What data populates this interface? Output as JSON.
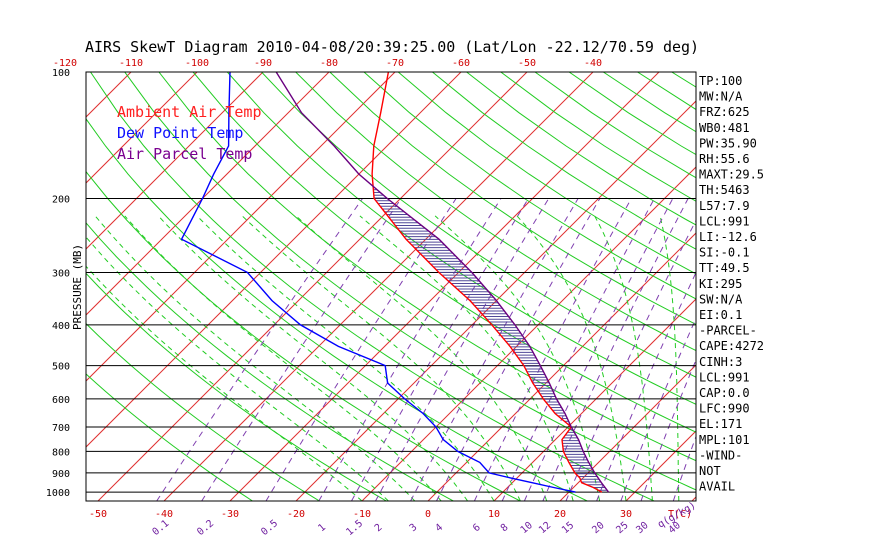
{
  "chart_data": {
    "type": "skewt",
    "title": "AIRS SkewT Diagram 2010-04-08/20:39:25.00 (Lat/Lon -22.12/70.59 deg)",
    "ylabel": "PRESSURE (MB)",
    "pressure_ticks": [
      100,
      200,
      300,
      400,
      500,
      600,
      700,
      800,
      900,
      1000
    ],
    "top_temp_ticks": [
      -120,
      -110,
      -100,
      -90,
      -80,
      -70,
      -60,
      -50,
      -40
    ],
    "bottom_temp_ticks": [
      -50,
      -40,
      -30,
      -20,
      -10,
      0,
      10,
      20,
      30
    ],
    "bottom_temp_unit": "T(C)",
    "mixing_ratio_ticks": [
      "0.1",
      "0.2",
      "0.5",
      "1",
      "1.5",
      "2",
      "3",
      "4",
      "6",
      "8",
      "10",
      "12",
      "15",
      "20",
      "25",
      "30",
      "40"
    ],
    "mixing_ratio_unit": "q(g/kg)",
    "legend": [
      {
        "label": "Ambient Air Temp",
        "color": "#ff2020"
      },
      {
        "label": "Dew Point Temp",
        "color": "#1010ff"
      },
      {
        "label": "Air Parcel Temp",
        "color": "#7a0090"
      }
    ],
    "series": [
      {
        "name": "Ambient Air Temp",
        "color": "#ff0000",
        "points": [
          [
            1000,
            25
          ],
          [
            975,
            23
          ],
          [
            950,
            20.5
          ],
          [
            925,
            19.5
          ],
          [
            900,
            18
          ],
          [
            850,
            15.5
          ],
          [
            800,
            13
          ],
          [
            750,
            11
          ],
          [
            700,
            10.5
          ],
          [
            650,
            6
          ],
          [
            600,
            2
          ],
          [
            550,
            -2
          ],
          [
            500,
            -6
          ],
          [
            450,
            -11
          ],
          [
            400,
            -17
          ],
          [
            350,
            -24
          ],
          [
            300,
            -33
          ],
          [
            250,
            -43
          ],
          [
            200,
            -54
          ],
          [
            175,
            -58
          ],
          [
            150,
            -62
          ],
          [
            125,
            -66
          ],
          [
            100,
            -71
          ]
        ]
      },
      {
        "name": "Dew Point Temp",
        "color": "#0000ff",
        "points": [
          [
            1000,
            21
          ],
          [
            975,
            17
          ],
          [
            950,
            13
          ],
          [
            925,
            9
          ],
          [
            900,
            5
          ],
          [
            850,
            2
          ],
          [
            800,
            -3
          ],
          [
            750,
            -7
          ],
          [
            700,
            -10
          ],
          [
            650,
            -14
          ],
          [
            600,
            -19
          ],
          [
            550,
            -24
          ],
          [
            500,
            -27
          ],
          [
            450,
            -37
          ],
          [
            400,
            -46
          ],
          [
            350,
            -54
          ],
          [
            300,
            -62
          ],
          [
            250,
            -77
          ],
          [
            200,
            -80
          ],
          [
            175,
            -82
          ],
          [
            150,
            -84
          ],
          [
            125,
            -89
          ],
          [
            100,
            -95
          ]
        ]
      },
      {
        "name": "Air Parcel Temp",
        "color": "#6a0080",
        "points": [
          [
            1000,
            26
          ],
          [
            950,
            23.5
          ],
          [
            900,
            21
          ],
          [
            850,
            18.5
          ],
          [
            800,
            16
          ],
          [
            750,
            13.5
          ],
          [
            700,
            10.5
          ],
          [
            650,
            7.5
          ],
          [
            600,
            4
          ],
          [
            550,
            0.5
          ],
          [
            500,
            -3.5
          ],
          [
            450,
            -8
          ],
          [
            400,
            -13.5
          ],
          [
            350,
            -20
          ],
          [
            300,
            -28
          ],
          [
            250,
            -38
          ],
          [
            200,
            -52
          ],
          [
            175,
            -60
          ],
          [
            150,
            -68
          ],
          [
            125,
            -78
          ],
          [
            100,
            -88
          ]
        ]
      }
    ],
    "indices": [
      "TP:100",
      "MW:N/A",
      "FRZ:625",
      "WB0:481",
      "PW:35.90",
      "RH:55.6",
      "MAXT:29.5",
      "TH:5463",
      "L57:7.9",
      "LCL:991",
      "LI:-12.6",
      "SI:-0.1",
      "TT:49.5",
      "KI:295",
      "SW:N/A",
      "EI:0.1",
      "-PARCEL-",
      "CAPE:4272",
      "CINH:3",
      "LCL:991",
      "CAP:0.0",
      "LFC:990",
      "EL:171",
      "MPL:101",
      "-WIND-",
      "NOT",
      "AVAIL"
    ]
  }
}
